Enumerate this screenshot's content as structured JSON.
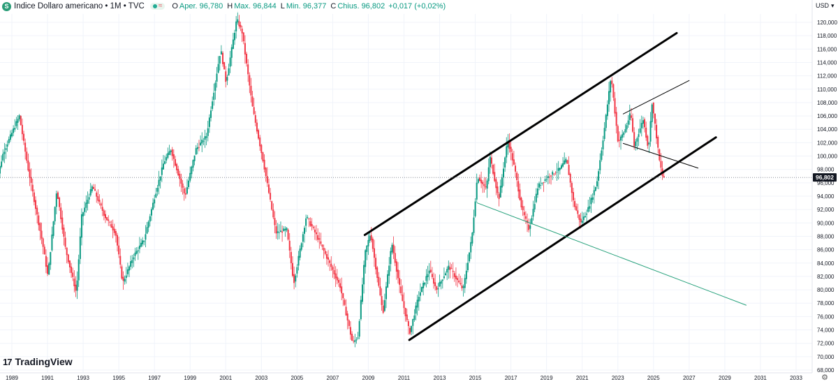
{
  "header": {
    "symbol_icon": "S",
    "title": "Indice Dollaro americano • 1M • TVC",
    "open_label": "O",
    "open": "Aper. 96,780",
    "high_label": "H",
    "high": "Max. 96,844",
    "low_label": "L",
    "low": "Min. 96,377",
    "close_label": "C",
    "close": "Chius. 96,802",
    "change": "+0,017 (+0,02%)"
  },
  "currency": "USD",
  "logo": "TradingView",
  "colors": {
    "up": "#089981",
    "down": "#f23645",
    "line": "#000000",
    "green_line": "#26a17b"
  },
  "chart_data": {
    "type": "candlestick",
    "timeframe": "1M",
    "ylim": [
      68000,
      122000
    ],
    "y_ticks": [
      "68,000",
      "70,000",
      "72,000",
      "74,000",
      "76,000",
      "78,000",
      "80,000",
      "82,000",
      "84,000",
      "86,000",
      "88,000",
      "90,000",
      "92,000",
      "94,000",
      "96,000",
      "98,000",
      "100,000",
      "102,000",
      "104,000",
      "106,000",
      "108,000",
      "110,000",
      "112,000",
      "114,000",
      "116,000",
      "118,000",
      "120,000"
    ],
    "x_ticks": [
      "1989",
      "1991",
      "1993",
      "1995",
      "1997",
      "1999",
      "2001",
      "2003",
      "2005",
      "2007",
      "2009",
      "2011",
      "2013",
      "2015",
      "2017",
      "2019",
      "2021",
      "2023",
      "2025",
      "2027",
      "2029",
      "2031",
      "2033"
    ],
    "last_price": "96,802",
    "path_points": [
      [
        1988.0,
        93.5
      ],
      [
        1988.6,
        100.5
      ],
      [
        1989.5,
        106.0
      ],
      [
        1990.0,
        98.0
      ],
      [
        1990.8,
        87.0
      ],
      [
        1991.1,
        82.0
      ],
      [
        1991.6,
        95.0
      ],
      [
        1992.1,
        86.0
      ],
      [
        1992.7,
        79.5
      ],
      [
        1993.0,
        91.0
      ],
      [
        1993.6,
        95.5
      ],
      [
        1994.3,
        91.0
      ],
      [
        1994.9,
        88.5
      ],
      [
        1995.3,
        81.0
      ],
      [
        1995.9,
        85.0
      ],
      [
        1996.5,
        87.5
      ],
      [
        1997.1,
        94.0
      ],
      [
        1997.6,
        99.0
      ],
      [
        1998.0,
        101.0
      ],
      [
        1998.8,
        94.0
      ],
      [
        1999.4,
        101.0
      ],
      [
        2000.0,
        103.0
      ],
      [
        2000.8,
        116.0
      ],
      [
        2001.1,
        111.0
      ],
      [
        2001.7,
        120.5
      ],
      [
        2002.0,
        118.5
      ],
      [
        2002.6,
        107.0
      ],
      [
        2003.2,
        99.0
      ],
      [
        2003.9,
        88.5
      ],
      [
        2004.5,
        89.0
      ],
      [
        2004.9,
        81.0
      ],
      [
        2005.6,
        91.0
      ],
      [
        2006.2,
        88.0
      ],
      [
        2006.9,
        84.0
      ],
      [
        2007.5,
        80.5
      ],
      [
        2008.2,
        72.0
      ],
      [
        2008.5,
        73.0
      ],
      [
        2008.9,
        85.5
      ],
      [
        2009.2,
        88.5
      ],
      [
        2009.9,
        76.5
      ],
      [
        2010.4,
        87.0
      ],
      [
        2010.9,
        79.5
      ],
      [
        2011.4,
        73.5
      ],
      [
        2011.9,
        79.0
      ],
      [
        2012.5,
        83.0
      ],
      [
        2012.9,
        80.0
      ],
      [
        2013.6,
        83.5
      ],
      [
        2014.4,
        80.0
      ],
      [
        2014.9,
        88.0
      ],
      [
        2015.2,
        97.0
      ],
      [
        2015.7,
        95.0
      ],
      [
        2015.9,
        100.0
      ],
      [
        2016.4,
        93.5
      ],
      [
        2016.9,
        102.5
      ],
      [
        2017.3,
        98.0
      ],
      [
        2017.7,
        92.0
      ],
      [
        2018.1,
        89.0
      ],
      [
        2018.6,
        95.5
      ],
      [
        2019.2,
        97.0
      ],
      [
        2019.8,
        98.0
      ],
      [
        2020.2,
        99.5
      ],
      [
        2020.6,
        93.0
      ],
      [
        2021.0,
        90.0
      ],
      [
        2021.4,
        92.0
      ],
      [
        2021.9,
        96.0
      ],
      [
        2022.3,
        103.5
      ],
      [
        2022.7,
        112.0
      ],
      [
        2022.9,
        107.0
      ],
      [
        2023.1,
        102.0
      ],
      [
        2023.5,
        104.0
      ],
      [
        2023.8,
        106.5
      ],
      [
        2024.0,
        101.5
      ],
      [
        2024.5,
        105.5
      ],
      [
        2024.8,
        101.0
      ],
      [
        2025.0,
        108.0
      ],
      [
        2025.2,
        104.0
      ],
      [
        2025.4,
        99.5
      ],
      [
        2025.6,
        96.8
      ]
    ],
    "trendlines": [
      {
        "name": "upper-channel",
        "from": [
          2008.8,
          88.2
        ],
        "to": [
          2026.3,
          118.4
        ]
      },
      {
        "name": "lower-channel",
        "from": [
          2011.3,
          72.5
        ],
        "to": [
          2028.5,
          102.8
        ]
      },
      {
        "name": "wedge-upper",
        "from": [
          2023.3,
          106.3
        ],
        "to": [
          2027.0,
          111.3
        ]
      },
      {
        "name": "wedge-lower",
        "from": [
          2023.3,
          101.9
        ],
        "to": [
          2027.5,
          98.2
        ]
      },
      {
        "name": "green-line",
        "from": [
          2015.1,
          93.0
        ],
        "to": [
          2030.2,
          77.7
        ]
      }
    ]
  }
}
